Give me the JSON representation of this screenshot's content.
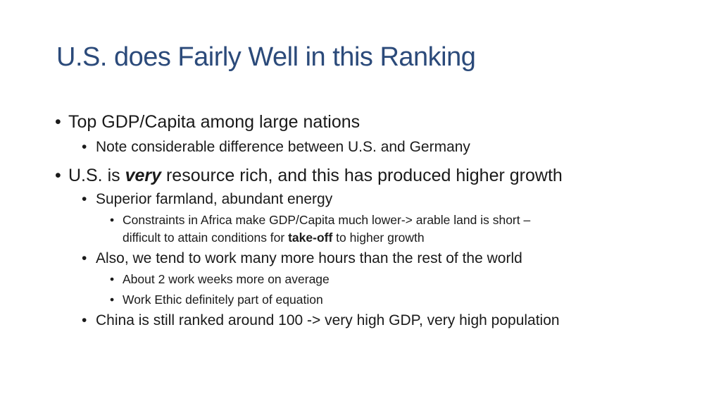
{
  "title": "U.S. does Fairly Well in this Ranking",
  "bullets": {
    "b1": "Top GDP/Capita among large nations",
    "b1_1": "Note considerable difference between U.S. and Germany",
    "b2_pre": "U.S. is ",
    "b2_emph": "very",
    "b2_post": " resource rich, and this has produced higher growth",
    "b2_1": "Superior farmland, abundant energy",
    "b2_1_1_line1": "Constraints in Africa make GDP/Capita much lower-> arable land is short –",
    "b2_1_1_line2_pre": "difficult to attain conditions for ",
    "b2_1_1_line2_bold": "take-off",
    "b2_1_1_line2_post": " to higher growth",
    "b2_2": "Also, we tend to work many more hours than the rest of the world",
    "b2_2_1": "About 2 work weeks more on average",
    "b2_2_2": "Work Ethic definitely part of equation",
    "b2_3": "China is still ranked around 100 -> very high GDP, very high population"
  },
  "bullet_glyph": "•"
}
